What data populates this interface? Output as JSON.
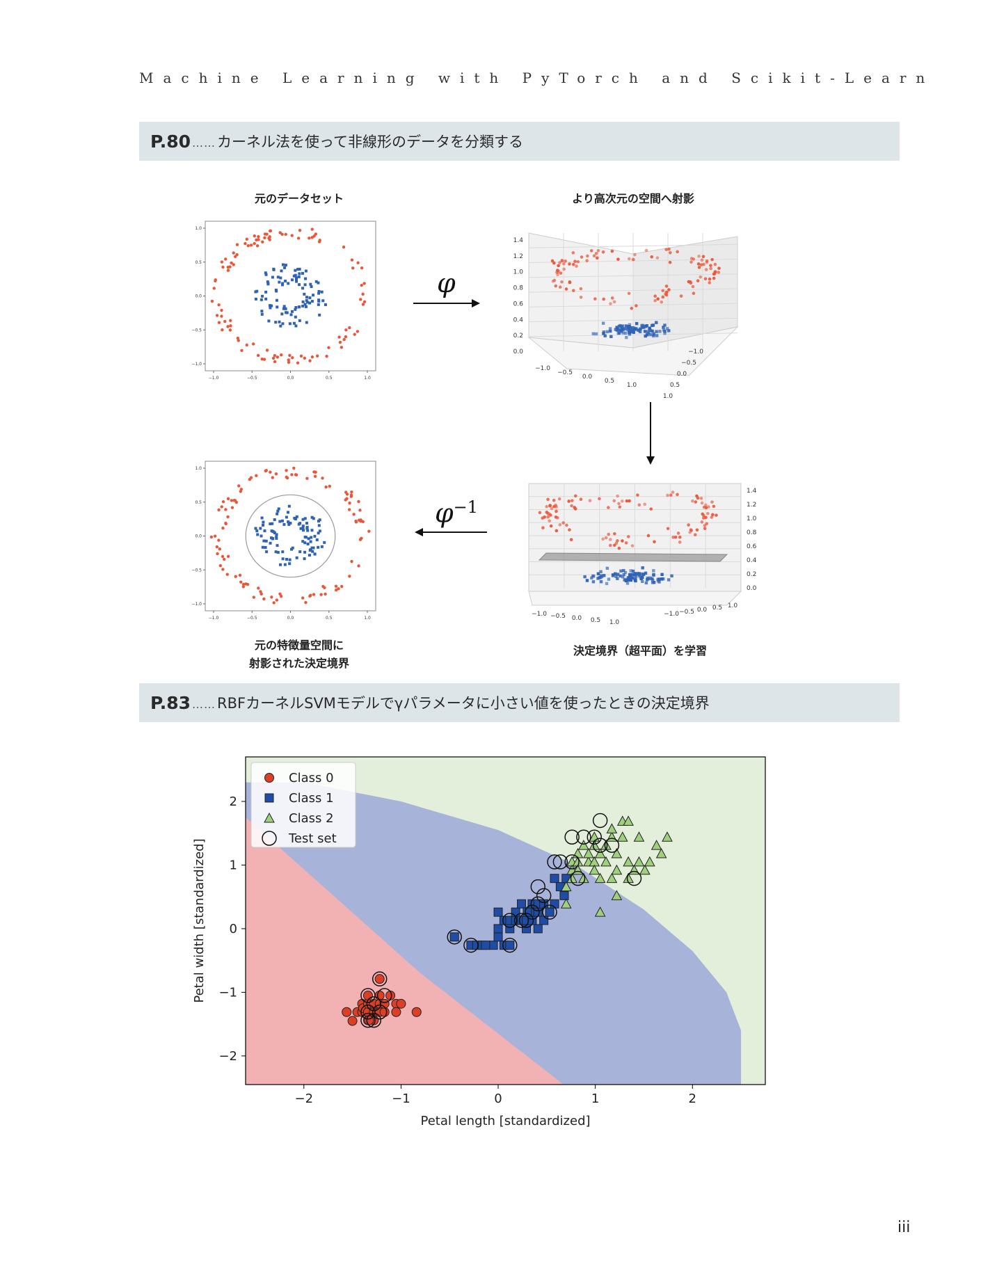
{
  "header": {
    "running_title": "Machine Learning with PyTorch and Scikit-Learn"
  },
  "section1": {
    "page_ref": "P.80",
    "leader": "……",
    "title": "カーネル法を使って非線形のデータを分類する",
    "captions": {
      "original": "元のデータセット",
      "projected": "より高次元の空間へ射影",
      "boundary_line1": "元の特徴量空間に",
      "boundary_line2": "射影された決定境界",
      "hyperplane": "決定境界（超平面）を学習"
    },
    "phi": "φ",
    "phi_inv_exp": "−1",
    "panels": {
      "circles_2d": {
        "x_ticks": [
          "−1.0",
          "−0.5",
          "0.0",
          "0.5",
          "1.0"
        ],
        "y_ticks": [
          "1.0",
          "0.5",
          "0.0",
          "−0.5",
          "−1.0"
        ]
      },
      "proj_3d_top": {
        "z_ticks": [
          "1.4",
          "1.2",
          "1.0",
          "0.8",
          "0.6",
          "0.4",
          "0.2",
          "0.0"
        ],
        "x_ticks": [
          "−1.0",
          "−0.5",
          "0.0",
          "0.5",
          "1.0"
        ],
        "y_ticks": [
          "−1.0",
          "−0.5",
          "0.0",
          "0.5",
          "1.0"
        ]
      },
      "proj_3d_bottom": {
        "z_ticks": [
          "1.4",
          "1.2",
          "1.0",
          "0.8",
          "0.6",
          "0.4",
          "0.2",
          "0.0"
        ],
        "x_ticks": [
          "−1.0",
          "−0.5",
          "0.0",
          "0.5",
          "1.0"
        ],
        "y_ticks": [
          "−1.0",
          "−0.5",
          "0.0",
          "0.5",
          "1.0"
        ]
      }
    },
    "colors": {
      "outer": "#e8573a",
      "inner": "#2f62b4"
    }
  },
  "section2": {
    "page_ref": "P.83",
    "leader": "……",
    "title": "RBFカーネルSVMモデルでγパラメータに小さい値を使ったときの決定境界"
  },
  "chart_data": {
    "type": "scatter",
    "title": "",
    "xlabel": "Petal length [standardized]",
    "ylabel": "Petal width [standardized]",
    "xlim": [
      -2.6,
      2.75
    ],
    "ylim": [
      -2.45,
      2.7
    ],
    "x_ticks": [
      "−2",
      "−1",
      "0",
      "1",
      "2"
    ],
    "y_ticks": [
      "2",
      "1",
      "0",
      "−1",
      "−2"
    ],
    "legend_position": "upper-left",
    "legend": [
      "Class 0",
      "Class 1",
      "Class 2",
      "Test set"
    ],
    "region_colors": {
      "class0": "#f2b1b3",
      "class1": "#a8b3da",
      "class2": "#e3efda"
    },
    "series": [
      {
        "name": "Class 0",
        "marker": "circle",
        "color": "#dd3f26",
        "points": [
          [
            -1.56,
            -1.31
          ],
          [
            -1.5,
            -1.45
          ],
          [
            -1.45,
            -1.31
          ],
          [
            -1.4,
            -1.18
          ],
          [
            -1.4,
            -1.31
          ],
          [
            -1.39,
            -1.25
          ],
          [
            -1.34,
            -1.31
          ],
          [
            -1.34,
            -1.18
          ],
          [
            -1.34,
            -1.05
          ],
          [
            -1.34,
            -1.44
          ],
          [
            -1.28,
            -1.31
          ],
          [
            -1.28,
            -1.18
          ],
          [
            -1.28,
            -1.44
          ],
          [
            -1.22,
            -1.31
          ],
          [
            -1.22,
            -1.05
          ],
          [
            -1.22,
            -1.18
          ],
          [
            -1.17,
            -1.31
          ],
          [
            -1.17,
            -1.18
          ],
          [
            -1.11,
            -1.05
          ],
          [
            -1.05,
            -1.18
          ],
          [
            -1.05,
            -1.31
          ],
          [
            -1.22,
            -0.79
          ],
          [
            -1.0,
            -1.18
          ],
          [
            -1.33,
            -1.44
          ],
          [
            -0.84,
            -1.31
          ]
        ]
      },
      {
        "name": "Class 1",
        "marker": "square",
        "color": "#1f4da6",
        "points": [
          [
            -0.45,
            -0.13
          ],
          [
            -0.28,
            -0.26
          ],
          [
            -0.22,
            -0.26
          ],
          [
            -0.16,
            -0.26
          ],
          [
            -0.05,
            -0.26
          ],
          [
            0.0,
            -0.13
          ],
          [
            0.0,
            0.0
          ],
          [
            0.06,
            0.13
          ],
          [
            0.06,
            -0.26
          ],
          [
            0.12,
            0.0
          ],
          [
            0.12,
            0.13
          ],
          [
            0.12,
            -0.26
          ],
          [
            0.18,
            0.13
          ],
          [
            0.18,
            0.26
          ],
          [
            0.24,
            0.13
          ],
          [
            0.24,
            0.39
          ],
          [
            0.29,
            0.0
          ],
          [
            0.29,
            0.13
          ],
          [
            0.35,
            0.13
          ],
          [
            0.35,
            0.26
          ],
          [
            0.35,
            0.39
          ],
          [
            0.41,
            0.0
          ],
          [
            0.41,
            0.26
          ],
          [
            0.41,
            0.39
          ],
          [
            0.47,
            0.13
          ],
          [
            0.47,
            0.39
          ],
          [
            0.53,
            0.26
          ],
          [
            0.58,
            0.39
          ],
          [
            0.58,
            0.79
          ],
          [
            0.64,
            0.66
          ],
          [
            0.68,
            0.52
          ],
          [
            0.7,
            0.79
          ],
          [
            -0.13,
            -0.26
          ],
          [
            0.3,
            0.26
          ],
          [
            0.0,
            0.26
          ]
        ]
      },
      {
        "name": "Class 2",
        "marker": "triangle",
        "color": "#9ed07e",
        "points": [
          [
            0.7,
            0.66
          ],
          [
            0.7,
            0.39
          ],
          [
            0.76,
            1.05
          ],
          [
            0.76,
            0.92
          ],
          [
            0.76,
            0.79
          ],
          [
            0.82,
            1.18
          ],
          [
            0.82,
            1.05
          ],
          [
            0.82,
            0.92
          ],
          [
            0.88,
            1.31
          ],
          [
            0.88,
            0.79
          ],
          [
            0.93,
            1.05
          ],
          [
            0.93,
            1.18
          ],
          [
            0.99,
            1.44
          ],
          [
            0.99,
            1.31
          ],
          [
            0.99,
            1.05
          ],
          [
            0.99,
            0.92
          ],
          [
            1.05,
            1.18
          ],
          [
            1.05,
            0.79
          ],
          [
            1.05,
            0.26
          ],
          [
            1.11,
            1.31
          ],
          [
            1.11,
            1.05
          ],
          [
            1.17,
            0.79
          ],
          [
            1.17,
            1.44
          ],
          [
            1.17,
            1.57
          ],
          [
            1.22,
            1.18
          ],
          [
            1.22,
            0.52
          ],
          [
            1.28,
            1.44
          ],
          [
            1.34,
            0.79
          ],
          [
            1.34,
            1.05
          ],
          [
            1.4,
            0.92
          ],
          [
            1.45,
            1.05
          ],
          [
            1.56,
            1.05
          ],
          [
            1.63,
            1.31
          ],
          [
            1.68,
            1.18
          ],
          [
            1.74,
            1.44
          ],
          [
            1.28,
            1.69
          ],
          [
            1.34,
            1.69
          ],
          [
            1.51,
            0.92
          ],
          [
            1.22,
            0.92
          ],
          [
            1.45,
            1.44
          ]
        ]
      },
      {
        "name": "Test set",
        "marker": "open-circle",
        "color": "#000000",
        "points": [
          [
            -1.22,
            -0.79
          ],
          [
            -1.34,
            -1.05
          ],
          [
            -1.34,
            -1.31
          ],
          [
            -1.28,
            -1.18
          ],
          [
            -1.28,
            -1.44
          ],
          [
            -1.22,
            -1.31
          ],
          [
            -1.17,
            -1.05
          ],
          [
            -1.34,
            -1.44
          ],
          [
            -0.45,
            -0.13
          ],
          [
            -0.28,
            -0.26
          ],
          [
            0.12,
            -0.26
          ],
          [
            0.12,
            0.13
          ],
          [
            0.24,
            0.13
          ],
          [
            0.29,
            0.13
          ],
          [
            0.35,
            0.26
          ],
          [
            0.41,
            0.39
          ],
          [
            0.47,
            0.52
          ],
          [
            0.41,
            0.66
          ],
          [
            0.53,
            0.26
          ],
          [
            0.58,
            1.05
          ],
          [
            0.64,
            1.05
          ],
          [
            0.76,
            1.05
          ],
          [
            0.82,
            0.79
          ],
          [
            0.76,
            1.44
          ],
          [
            0.88,
            1.44
          ],
          [
            0.99,
            1.44
          ],
          [
            1.05,
            1.7
          ],
          [
            1.05,
            1.31
          ],
          [
            1.17,
            1.31
          ],
          [
            1.4,
            0.79
          ]
        ]
      }
    ]
  }
}
